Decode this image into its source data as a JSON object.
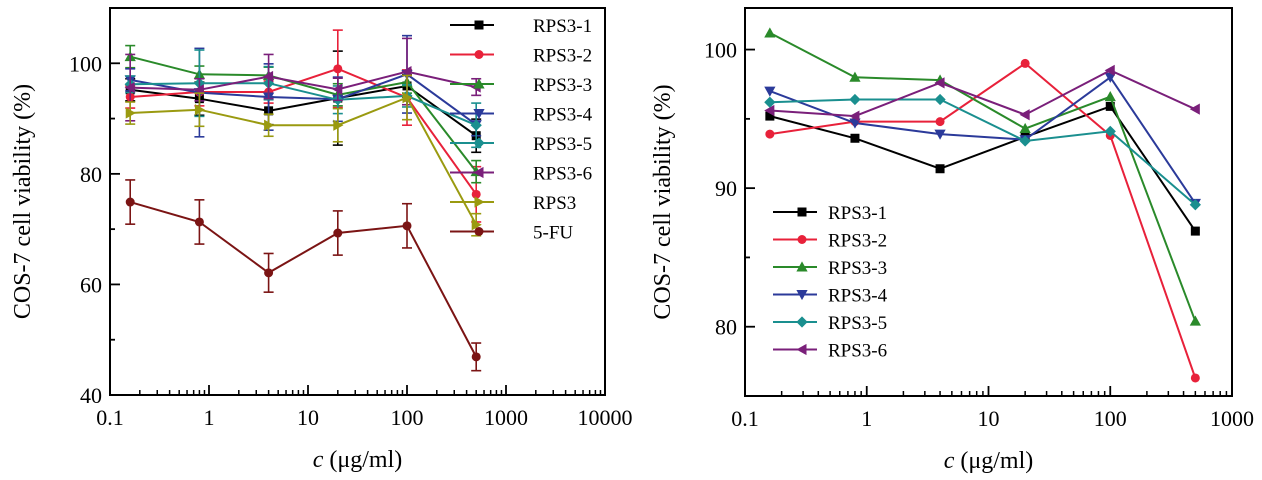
{
  "chart_data": [
    {
      "type": "line",
      "xlabel_var": "c",
      "xlabel_unit": " (μg/ml)",
      "ylabel": "COS-7 cell viability (%)",
      "xscale": "log",
      "xlim": [
        0.1,
        10000
      ],
      "ylim": [
        40,
        110
      ],
      "xticks": [
        0.1,
        1,
        10,
        100,
        1000,
        10000
      ],
      "xtick_labels": [
        "0.1",
        "1",
        "10",
        "100",
        "1000",
        "10000"
      ],
      "yticks": [
        40,
        60,
        80,
        100
      ],
      "ytick_labels": [
        "40",
        "60",
        "80",
        "100"
      ],
      "legend_position": "top-right",
      "x": [
        0.16,
        0.8,
        4,
        20,
        100,
        500
      ],
      "series": [
        {
          "name": "RPS3-1",
          "color": "#000000",
          "marker": "square",
          "values": [
            95.2,
            93.6,
            91.4,
            93.7,
            95.9,
            86.9
          ],
          "err": [
            2.0,
            3.0,
            2.5,
            8.5,
            2.0,
            3.0
          ]
        },
        {
          "name": "RPS3-2",
          "color": "#e8213a",
          "marker": "circle",
          "values": [
            93.9,
            94.8,
            94.8,
            99.0,
            93.8,
            76.3
          ],
          "err": [
            2.0,
            2.5,
            2.0,
            7.0,
            5.0,
            5.0
          ]
        },
        {
          "name": "RPS3-3",
          "color": "#2a8a2a",
          "marker": "triangle-up",
          "values": [
            101.2,
            98.0,
            97.8,
            94.3,
            96.6,
            80.4
          ],
          "err": [
            2.0,
            1.5,
            1.5,
            2.0,
            2.0,
            2.0
          ]
        },
        {
          "name": "RPS3-4",
          "color": "#2b3a9a",
          "marker": "triangle-down",
          "values": [
            97.0,
            94.7,
            93.9,
            93.5,
            98.0,
            88.9
          ],
          "err": [
            2.0,
            8.0,
            6.0,
            4.0,
            7.0,
            2.0
          ]
        },
        {
          "name": "RPS3-5",
          "color": "#1a8f8f",
          "marker": "diamond",
          "values": [
            96.2,
            96.4,
            96.4,
            93.4,
            94.1,
            88.8
          ],
          "err": [
            1.5,
            6.0,
            3.0,
            2.5,
            2.0,
            4.0
          ]
        },
        {
          "name": "RPS3-6",
          "color": "#7a1f7a",
          "marker": "triangle-left",
          "values": [
            95.6,
            95.2,
            97.6,
            95.3,
            98.5,
            95.7
          ],
          "err": [
            6.0,
            2.0,
            4.0,
            2.0,
            6.0,
            1.5
          ]
        },
        {
          "name": "RPS3",
          "color": "#9a9a10",
          "marker": "triangle-right",
          "values": [
            91.0,
            91.6,
            88.8,
            88.8,
            93.8,
            70.8
          ],
          "err": [
            2.0,
            3.0,
            2.0,
            3.0,
            4.0,
            2.0
          ]
        },
        {
          "name": "5-FU",
          "color": "#7b1414",
          "marker": "circle",
          "values": [
            74.9,
            71.3,
            62.1,
            69.3,
            70.6,
            46.9
          ],
          "err": [
            4.0,
            4.0,
            3.5,
            4.0,
            4.0,
            2.5
          ]
        }
      ]
    },
    {
      "type": "line",
      "xlabel_var": "c",
      "xlabel_unit": " (μg/ml)",
      "ylabel": "COS-7 cell viability (%)",
      "xscale": "log",
      "xlim": [
        0.1,
        1000
      ],
      "ylim": [
        75,
        103
      ],
      "xticks": [
        0.1,
        1,
        10,
        100,
        1000
      ],
      "xtick_labels": [
        "0.1",
        "1",
        "10",
        "100",
        "1000"
      ],
      "yticks": [
        80,
        90,
        100
      ],
      "ytick_labels": [
        "80",
        "90",
        "100"
      ],
      "legend_position": "bottom-left",
      "x": [
        0.16,
        0.8,
        4,
        20,
        100,
        500
      ],
      "series": [
        {
          "name": "RPS3-1",
          "color": "#000000",
          "marker": "square",
          "values": [
            95.2,
            93.6,
            91.4,
            93.7,
            95.9,
            86.9
          ]
        },
        {
          "name": "RPS3-2",
          "color": "#e8213a",
          "marker": "circle",
          "values": [
            93.9,
            94.8,
            94.8,
            99.0,
            93.8,
            76.3
          ]
        },
        {
          "name": "RPS3-3",
          "color": "#2a8a2a",
          "marker": "triangle-up",
          "values": [
            101.2,
            98.0,
            97.8,
            94.3,
            96.6,
            80.4
          ]
        },
        {
          "name": "RPS3-4",
          "color": "#2b3a9a",
          "marker": "triangle-down",
          "values": [
            97.0,
            94.7,
            93.9,
            93.5,
            98.0,
            88.9
          ]
        },
        {
          "name": "RPS3-5",
          "color": "#1a8f8f",
          "marker": "diamond",
          "values": [
            96.2,
            96.4,
            96.4,
            93.4,
            94.1,
            88.8
          ]
        },
        {
          "name": "RPS3-6",
          "color": "#7a1f7a",
          "marker": "triangle-left",
          "values": [
            95.6,
            95.2,
            97.6,
            95.3,
            98.5,
            95.7
          ]
        }
      ]
    }
  ]
}
